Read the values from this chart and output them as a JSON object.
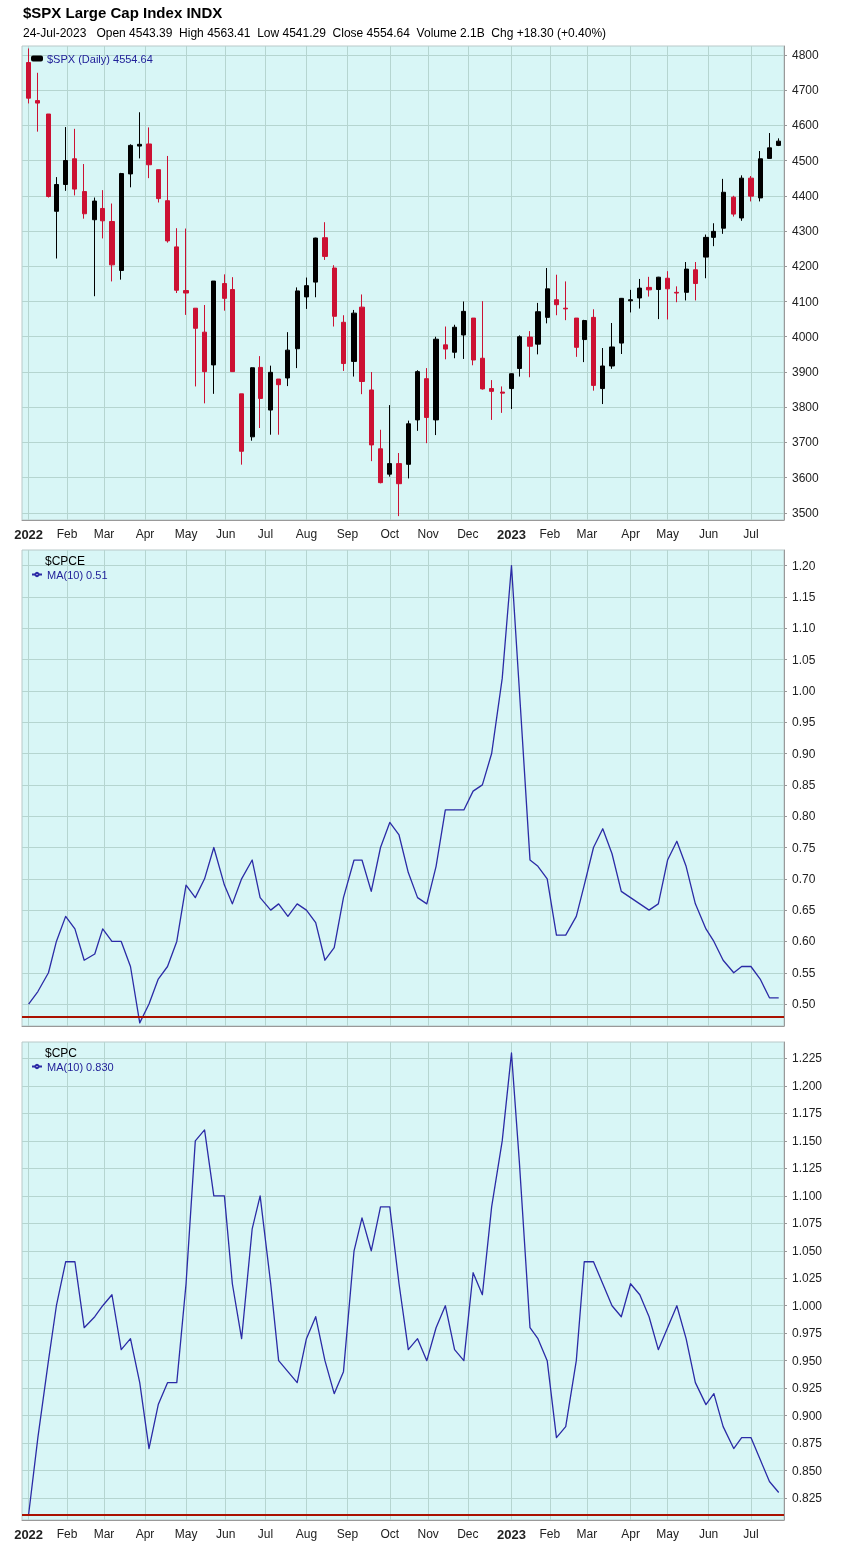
{
  "chart_data": [
    {
      "type": "candlestick",
      "title": "$SPX Large Cap Index INDX",
      "subtitle": "24-Jul-2023   Open 4543.39  High 4563.41  Low 4541.29  Close 4554.64  Volume 2.1B  Chg +18.30 (+0.40%)",
      "x": [
        "2022-01-03",
        "2022-01-10",
        "2022-01-18",
        "2022-01-24",
        "2022-01-31",
        "2022-02-07",
        "2022-02-14",
        "2022-02-22",
        "2022-02-28",
        "2022-03-07",
        "2022-03-14",
        "2022-03-21",
        "2022-03-28",
        "2022-04-04",
        "2022-04-11",
        "2022-04-18",
        "2022-04-25",
        "2022-05-02",
        "2022-05-09",
        "2022-05-16",
        "2022-05-23",
        "2022-05-31",
        "2022-06-06",
        "2022-06-13",
        "2022-06-21",
        "2022-06-27",
        "2022-07-05",
        "2022-07-11",
        "2022-07-18",
        "2022-07-25",
        "2022-08-01",
        "2022-08-08",
        "2022-08-15",
        "2022-08-22",
        "2022-08-29",
        "2022-09-06",
        "2022-09-12",
        "2022-09-19",
        "2022-09-26",
        "2022-10-03",
        "2022-10-10",
        "2022-10-17",
        "2022-10-24",
        "2022-10-31",
        "2022-11-07",
        "2022-11-14",
        "2022-11-21",
        "2022-11-28",
        "2022-12-05",
        "2022-12-12",
        "2022-12-19",
        "2022-12-27",
        "2023-01-03",
        "2023-01-09",
        "2023-01-17",
        "2023-01-23",
        "2023-01-30",
        "2023-02-06",
        "2023-02-13",
        "2023-02-21",
        "2023-02-27",
        "2023-03-06",
        "2023-03-13",
        "2023-03-20",
        "2023-03-27",
        "2023-04-03",
        "2023-04-10",
        "2023-04-17",
        "2023-04-24",
        "2023-05-01",
        "2023-05-08",
        "2023-05-15",
        "2023-05-22",
        "2023-05-30",
        "2023-06-05",
        "2023-06-12",
        "2023-06-20",
        "2023-06-26",
        "2023-07-03",
        "2023-07-10",
        "2023-07-17",
        "2023-07-24"
      ],
      "series": [
        {
          "name": "$SPX (Daily) 4554.64",
          "ohlc": [
            [
              4778,
              4818,
              4662,
              4677
            ],
            [
              4670,
              4749,
              4582,
              4663
            ],
            [
              4632,
              4632,
              4395,
              4398
            ],
            [
              4356,
              4453,
              4222,
              4432
            ],
            [
              4432,
              4595,
              4414,
              4500
            ],
            [
              4505,
              4590,
              4401,
              4419
            ],
            [
              4412,
              4490,
              4335,
              4349
            ],
            [
              4332,
              4395,
              4115,
              4385
            ],
            [
              4364,
              4416,
              4279,
              4329
            ],
            [
              4327,
              4378,
              4157,
              4204
            ],
            [
              4188,
              4465,
              4162,
              4463
            ],
            [
              4462,
              4546,
              4424,
              4543
            ],
            [
              4541,
              4637,
              4506,
              4546
            ],
            [
              4547,
              4594,
              4450,
              4488
            ],
            [
              4474,
              4474,
              4381,
              4392
            ],
            [
              4386,
              4513,
              4267,
              4272
            ],
            [
              4255,
              4308,
              4124,
              4132
            ],
            [
              4131,
              4307,
              4062,
              4124
            ],
            [
              4081,
              4081,
              3859,
              4024
            ],
            [
              4013,
              4090,
              3811,
              3901
            ],
            [
              3920,
              4158,
              3838,
              4158
            ],
            [
              4151,
              4177,
              4074,
              4109
            ],
            [
              4134,
              4169,
              3900,
              3901
            ],
            [
              3838,
              3838,
              3637,
              3675
            ],
            [
              3716,
              3913,
              3705,
              3912
            ],
            [
              3913,
              3945,
              3741,
              3825
            ],
            [
              3792,
              3918,
              3722,
              3899
            ],
            [
              3880,
              3880,
              3722,
              3864
            ],
            [
              3883,
              4013,
              3860,
              3962
            ],
            [
              3966,
              4140,
              3911,
              4130
            ],
            [
              4113,
              4168,
              4079,
              4145
            ],
            [
              4155,
              4281,
              4112,
              4280
            ],
            [
              4281,
              4325,
              4218,
              4228
            ],
            [
              4195,
              4203,
              4029,
              4058
            ],
            [
              4041,
              4061,
              3903,
              3924
            ],
            [
              3930,
              4076,
              3887,
              4067
            ],
            [
              4084,
              4120,
              3837,
              3873
            ],
            [
              3849,
              3900,
              3647,
              3693
            ],
            [
              3682,
              3736,
              3584,
              3586
            ],
            [
              3610,
              3806,
              3603,
              3640
            ],
            [
              3640,
              3670,
              3491,
              3583
            ],
            [
              3638,
              3762,
              3598,
              3753
            ],
            [
              3764,
              3905,
              3733,
              3901
            ],
            [
              3881,
              3911,
              3698,
              3771
            ],
            [
              3764,
              4000,
              3721,
              3993
            ],
            [
              3977,
              4029,
              3936,
              3965
            ],
            [
              3956,
              4034,
              3939,
              4027
            ],
            [
              4005,
              4100,
              3937,
              4072
            ],
            [
              4053,
              4053,
              3919,
              3934
            ],
            [
              3939,
              4101,
              3850,
              3852
            ],
            [
              3853,
              3877,
              3764,
              3845
            ],
            [
              3843,
              3859,
              3784,
              3840
            ],
            [
              3853,
              3896,
              3795,
              3895
            ],
            [
              3910,
              4004,
              3887,
              4000
            ],
            [
              3999,
              4016,
              3885,
              3973
            ],
            [
              3979,
              4096,
              3950,
              4071
            ],
            [
              4055,
              4195,
              4038,
              4136
            ],
            [
              4105,
              4176,
              4061,
              4091
            ],
            [
              4081,
              4157,
              4047,
              4079
            ],
            [
              4053,
              4053,
              3943,
              3970
            ],
            [
              3992,
              4048,
              3928,
              4046
            ],
            [
              4055,
              4078,
              3847,
              3862
            ],
            [
              3853,
              3968,
              3809,
              3917
            ],
            [
              3917,
              4039,
              3909,
              3971
            ],
            [
              3982,
              4110,
              3951,
              4109
            ],
            [
              4102,
              4133,
              4069,
              4105
            ],
            [
              4110,
              4164,
              4080,
              4138
            ],
            [
              4140,
              4170,
              4114,
              4133
            ],
            [
              4134,
              4170,
              4050,
              4169
            ],
            [
              4166,
              4186,
              4049,
              4136
            ],
            [
              4126,
              4143,
              4098,
              4124
            ],
            [
              4126,
              4212,
              4103,
              4192
            ],
            [
              4190,
              4212,
              4103,
              4151
            ],
            [
              4226,
              4290,
              4166,
              4282
            ],
            [
              4282,
              4322,
              4257,
              4299
            ],
            [
              4308,
              4448,
              4292,
              4410
            ],
            [
              4396,
              4400,
              4341,
              4348
            ],
            [
              4337,
              4458,
              4329,
              4450
            ],
            [
              4450,
              4456,
              4384,
              4399
            ],
            [
              4394,
              4527,
              4384,
              4505
            ],
            [
              4506,
              4578,
              4506,
              4536
            ],
            [
              4543,
              4563,
              4541,
              4555
            ]
          ],
          "colors": [
            "#cc1133",
            "#cc1133",
            "#cc1133",
            "#000000",
            "#000000",
            "#cc1133",
            "#cc1133",
            "#000000",
            "#cc1133",
            "#cc1133",
            "#000000",
            "#000000",
            "#000000",
            "#cc1133",
            "#cc1133",
            "#cc1133",
            "#cc1133",
            "#cc1133",
            "#cc1133",
            "#cc1133",
            "#000000",
            "#cc1133",
            "#cc1133",
            "#cc1133",
            "#000000",
            "#cc1133",
            "#000000",
            "#cc1133",
            "#000000",
            "#000000",
            "#000000",
            "#000000",
            "#cc1133",
            "#cc1133",
            "#cc1133",
            "#000000",
            "#cc1133",
            "#cc1133",
            "#cc1133",
            "#000000",
            "#cc1133",
            "#000000",
            "#000000",
            "#cc1133",
            "#000000",
            "#cc1133",
            "#000000",
            "#000000",
            "#cc1133",
            "#cc1133",
            "#cc1133",
            "#cc1133",
            "#000000",
            "#000000",
            "#cc1133",
            "#000000",
            "#000000",
            "#cc1133",
            "#cc1133",
            "#cc1133",
            "#000000",
            "#cc1133",
            "#000000",
            "#000000",
            "#000000",
            "#000000",
            "#000000",
            "#cc1133",
            "#000000",
            "#cc1133",
            "#cc1133",
            "#000000",
            "#cc1133",
            "#000000",
            "#000000",
            "#000000",
            "#cc1133",
            "#000000",
            "#cc1133",
            "#000000",
            "#000000",
            "#000000"
          ]
        }
      ],
      "xlim": [
        "2021-12-29",
        "2023-07-28"
      ],
      "xticks": [
        {
          "value": "2022-01-03",
          "label": "2022"
        },
        {
          "value": "2022-02-01",
          "label": "Feb"
        },
        {
          "value": "2022-03-01",
          "label": "Mar"
        },
        {
          "value": "2022-04-01",
          "label": "Apr"
        },
        {
          "value": "2022-05-02",
          "label": "May"
        },
        {
          "value": "2022-06-01",
          "label": "Jun"
        },
        {
          "value": "2022-07-01",
          "label": "Jul"
        },
        {
          "value": "2022-08-01",
          "label": "Aug"
        },
        {
          "value": "2022-09-01",
          "label": "Sep"
        },
        {
          "value": "2022-10-03",
          "label": "Oct"
        },
        {
          "value": "2022-11-01",
          "label": "Nov"
        },
        {
          "value": "2022-12-01",
          "label": "Dec"
        },
        {
          "value": "2023-01-03",
          "label": "2023"
        },
        {
          "value": "2023-02-01",
          "label": "Feb"
        },
        {
          "value": "2023-03-01",
          "label": "Mar"
        },
        {
          "value": "2023-04-03",
          "label": "Apr"
        },
        {
          "value": "2023-05-01",
          "label": "May"
        },
        {
          "value": "2023-06-01",
          "label": "Jun"
        },
        {
          "value": "2023-07-03",
          "label": "Jul"
        }
      ],
      "ylim": [
        3480,
        4825
      ],
      "yticks": [
        3500,
        3600,
        3700,
        3800,
        3900,
        4000,
        4100,
        4200,
        4300,
        4400,
        4500,
        4600,
        4700,
        4800
      ],
      "grid": true,
      "legend": "top left"
    },
    {
      "type": "line",
      "title": "$CPCE",
      "x": [
        "2022-01-03",
        "2022-01-10",
        "2022-01-18",
        "2022-01-24",
        "2022-01-31",
        "2022-02-07",
        "2022-02-14",
        "2022-02-22",
        "2022-02-28",
        "2022-03-07",
        "2022-03-14",
        "2022-03-21",
        "2022-03-28",
        "2022-04-04",
        "2022-04-11",
        "2022-04-18",
        "2022-04-25",
        "2022-05-02",
        "2022-05-09",
        "2022-05-16",
        "2022-05-23",
        "2022-05-31",
        "2022-06-06",
        "2022-06-13",
        "2022-06-21",
        "2022-06-27",
        "2022-07-05",
        "2022-07-11",
        "2022-07-18",
        "2022-07-25",
        "2022-08-01",
        "2022-08-08",
        "2022-08-15",
        "2022-08-22",
        "2022-08-29",
        "2022-09-06",
        "2022-09-12",
        "2022-09-19",
        "2022-09-26",
        "2022-10-03",
        "2022-10-10",
        "2022-10-17",
        "2022-10-24",
        "2022-10-31",
        "2022-11-07",
        "2022-11-14",
        "2022-11-21",
        "2022-11-28",
        "2022-12-05",
        "2022-12-12",
        "2022-12-19",
        "2022-12-27",
        "2023-01-03",
        "2023-01-09",
        "2023-01-17",
        "2023-01-23",
        "2023-01-30",
        "2023-02-06",
        "2023-02-13",
        "2023-02-21",
        "2023-02-27",
        "2023-03-06",
        "2023-03-13",
        "2023-03-20",
        "2023-03-27",
        "2023-04-03",
        "2023-04-10",
        "2023-04-17",
        "2023-04-24",
        "2023-05-01",
        "2023-05-08",
        "2023-05-15",
        "2023-05-22",
        "2023-05-30",
        "2023-06-05",
        "2023-06-12",
        "2023-06-20",
        "2023-06-26",
        "2023-07-03",
        "2023-07-10",
        "2023-07-17",
        "2023-07-24"
      ],
      "series": [
        {
          "name": "MA(10) 0.51",
          "color": "#2b2ba6",
          "values": [
            0.5,
            0.52,
            0.55,
            0.6,
            0.64,
            0.62,
            0.57,
            0.58,
            0.62,
            0.6,
            0.6,
            0.56,
            0.47,
            0.5,
            0.54,
            0.56,
            0.6,
            0.69,
            0.67,
            0.7,
            0.75,
            0.69,
            0.66,
            0.7,
            0.73,
            0.67,
            0.65,
            0.66,
            0.64,
            0.66,
            0.65,
            0.63,
            0.57,
            0.59,
            0.67,
            0.73,
            0.73,
            0.68,
            0.75,
            0.79,
            0.77,
            0.71,
            0.67,
            0.66,
            0.72,
            0.81,
            0.81,
            0.81,
            0.84,
            0.85,
            0.9,
            1.02,
            1.2,
            1.0,
            0.73,
            0.72,
            0.7,
            0.61,
            0.61,
            0.64,
            0.69,
            0.75,
            0.78,
            0.74,
            0.68,
            0.67,
            0.66,
            0.65,
            0.66,
            0.73,
            0.76,
            0.72,
            0.66,
            0.62,
            0.6,
            0.57,
            0.55,
            0.56,
            0.56,
            0.54,
            0.51,
            0.51
          ]
        }
      ],
      "xlim": [
        "2021-12-29",
        "2023-07-28"
      ],
      "xticks": [
        {
          "value": "2022-01-03",
          "label": null
        },
        {
          "value": "2022-02-01",
          "label": null
        },
        {
          "value": "2022-03-01",
          "label": null
        },
        {
          "value": "2022-04-01",
          "label": null
        },
        {
          "value": "2022-05-02",
          "label": null
        },
        {
          "value": "2022-06-01",
          "label": null
        },
        {
          "value": "2022-07-01",
          "label": null
        },
        {
          "value": "2022-08-01",
          "label": null
        },
        {
          "value": "2022-09-01",
          "label": null
        },
        {
          "value": "2022-10-03",
          "label": null
        },
        {
          "value": "2022-11-01",
          "label": null
        },
        {
          "value": "2022-12-01",
          "label": null
        },
        {
          "value": "2023-01-03",
          "label": null
        },
        {
          "value": "2023-02-01",
          "label": null
        },
        {
          "value": "2023-03-01",
          "label": null
        },
        {
          "value": "2023-04-03",
          "label": null
        },
        {
          "value": "2023-05-01",
          "label": null
        },
        {
          "value": "2023-06-01",
          "label": null
        },
        {
          "value": "2023-07-03",
          "label": null
        }
      ],
      "ylim": [
        0.465,
        1.225
      ],
      "yticks": [
        {
          "value": 0.5,
          "label": "0.50"
        },
        {
          "value": 0.55,
          "label": "0.55"
        },
        {
          "value": 0.6,
          "label": "0.60"
        },
        {
          "value": 0.65,
          "label": "0.65"
        },
        {
          "value": 0.7,
          "label": "0.70"
        },
        {
          "value": 0.75,
          "label": "0.75"
        },
        {
          "value": 0.8,
          "label": "0.80"
        },
        {
          "value": 0.85,
          "label": "0.85"
        },
        {
          "value": 0.9,
          "label": "0.90"
        },
        {
          "value": 0.95,
          "label": "0.95"
        },
        {
          "value": 1.0,
          "label": "1.00"
        },
        {
          "value": 1.05,
          "label": "1.05"
        },
        {
          "value": 1.1,
          "label": "1.10"
        },
        {
          "value": 1.15,
          "label": "1.15"
        },
        {
          "value": 1.2,
          "label": "1.20"
        }
      ],
      "ref_lines": [
        {
          "axis": "y",
          "value": 0.48,
          "label": null,
          "color": "#aa1100"
        }
      ],
      "tick_labels": "y",
      "grid": true,
      "legend": "top left"
    },
    {
      "type": "line",
      "title": "$CPC",
      "x": [
        "2022-01-03",
        "2022-01-10",
        "2022-01-18",
        "2022-01-24",
        "2022-01-31",
        "2022-02-07",
        "2022-02-14",
        "2022-02-22",
        "2022-02-28",
        "2022-03-07",
        "2022-03-14",
        "2022-03-21",
        "2022-03-28",
        "2022-04-04",
        "2022-04-11",
        "2022-04-18",
        "2022-04-25",
        "2022-05-02",
        "2022-05-09",
        "2022-05-16",
        "2022-05-23",
        "2022-05-31",
        "2022-06-06",
        "2022-06-13",
        "2022-06-21",
        "2022-06-27",
        "2022-07-05",
        "2022-07-11",
        "2022-07-18",
        "2022-07-25",
        "2022-08-01",
        "2022-08-08",
        "2022-08-15",
        "2022-08-22",
        "2022-08-29",
        "2022-09-06",
        "2022-09-12",
        "2022-09-19",
        "2022-09-26",
        "2022-10-03",
        "2022-10-10",
        "2022-10-17",
        "2022-10-24",
        "2022-10-31",
        "2022-11-07",
        "2022-11-14",
        "2022-11-21",
        "2022-11-28",
        "2022-12-05",
        "2022-12-12",
        "2022-12-19",
        "2022-12-27",
        "2023-01-03",
        "2023-01-09",
        "2023-01-17",
        "2023-01-23",
        "2023-01-30",
        "2023-02-06",
        "2023-02-13",
        "2023-02-21",
        "2023-02-27",
        "2023-03-06",
        "2023-03-13",
        "2023-03-20",
        "2023-03-27",
        "2023-04-03",
        "2023-04-10",
        "2023-04-17",
        "2023-04-24",
        "2023-05-01",
        "2023-05-08",
        "2023-05-15",
        "2023-05-22",
        "2023-05-30",
        "2023-06-05",
        "2023-06-12",
        "2023-06-20",
        "2023-06-26",
        "2023-07-03",
        "2023-07-10",
        "2023-07-17",
        "2023-07-24"
      ],
      "series": [
        {
          "name": "MA(10) 0.830",
          "color": "#2b2ba6",
          "values": [
            0.81,
            0.88,
            0.95,
            1.0,
            1.04,
            1.04,
            0.98,
            0.99,
            1.0,
            1.01,
            0.96,
            0.97,
            0.93,
            0.87,
            0.91,
            0.93,
            0.93,
            1.02,
            1.15,
            1.16,
            1.1,
            1.1,
            1.02,
            0.97,
            1.07,
            1.1,
            1.02,
            0.95,
            0.94,
            0.93,
            0.97,
            0.99,
            0.95,
            0.92,
            0.94,
            1.05,
            1.08,
            1.05,
            1.09,
            1.09,
            1.02,
            0.96,
            0.97,
            0.95,
            0.98,
            1.0,
            0.96,
            0.95,
            1.03,
            1.01,
            1.09,
            1.15,
            1.23,
            1.13,
            0.98,
            0.97,
            0.95,
            0.88,
            0.89,
            0.95,
            1.04,
            1.04,
            1.02,
            1.0,
            0.99,
            1.02,
            1.01,
            0.99,
            0.96,
            0.98,
            1.0,
            0.97,
            0.93,
            0.91,
            0.92,
            0.89,
            0.87,
            0.88,
            0.88,
            0.86,
            0.84,
            0.83
          ]
        }
      ],
      "xlim": [
        "2021-12-29",
        "2023-07-28"
      ],
      "xticks": [
        {
          "value": "2022-01-03",
          "label": "2022"
        },
        {
          "value": "2022-02-01",
          "label": "Feb"
        },
        {
          "value": "2022-03-01",
          "label": "Mar"
        },
        {
          "value": "2022-04-01",
          "label": "Apr"
        },
        {
          "value": "2022-05-02",
          "label": "May"
        },
        {
          "value": "2022-06-01",
          "label": "Jun"
        },
        {
          "value": "2022-07-01",
          "label": "Jul"
        },
        {
          "value": "2022-08-01",
          "label": "Aug"
        },
        {
          "value": "2022-09-01",
          "label": "Sep"
        },
        {
          "value": "2022-10-03",
          "label": "Oct"
        },
        {
          "value": "2022-11-01",
          "label": "Nov"
        },
        {
          "value": "2022-12-01",
          "label": "Dec"
        },
        {
          "value": "2023-01-03",
          "label": "2023"
        },
        {
          "value": "2023-02-01",
          "label": "Feb"
        },
        {
          "value": "2023-03-01",
          "label": "Mar"
        },
        {
          "value": "2023-04-03",
          "label": "Apr"
        },
        {
          "value": "2023-05-01",
          "label": "May"
        },
        {
          "value": "2023-06-01",
          "label": "Jun"
        },
        {
          "value": "2023-07-03",
          "label": "Jul"
        }
      ],
      "ylim": [
        0.805,
        1.24
      ],
      "yticks": [
        {
          "value": 0.825,
          "label": "0.825"
        },
        {
          "value": 0.85,
          "label": "0.850"
        },
        {
          "value": 0.875,
          "label": "0.875"
        },
        {
          "value": 0.9,
          "label": "0.900"
        },
        {
          "value": 0.925,
          "label": "0.925"
        },
        {
          "value": 0.95,
          "label": "0.950"
        },
        {
          "value": 0.975,
          "label": "0.975"
        },
        {
          "value": 1.0,
          "label": "1.000"
        },
        {
          "value": 1.025,
          "label": "1.025"
        },
        {
          "value": 1.05,
          "label": "1.050"
        },
        {
          "value": 1.075,
          "label": "1.075"
        },
        {
          "value": 1.1,
          "label": "1.100"
        },
        {
          "value": 1.125,
          "label": "1.125"
        },
        {
          "value": 1.15,
          "label": "1.150"
        },
        {
          "value": 1.175,
          "label": "1.175"
        },
        {
          "value": 1.2,
          "label": "1.200"
        },
        {
          "value": 1.225,
          "label": "1.225"
        }
      ],
      "ref_lines": [
        {
          "axis": "y",
          "value": 0.81,
          "label": null,
          "color": "#aa1100"
        }
      ],
      "grid": true,
      "legend": "top left"
    }
  ]
}
